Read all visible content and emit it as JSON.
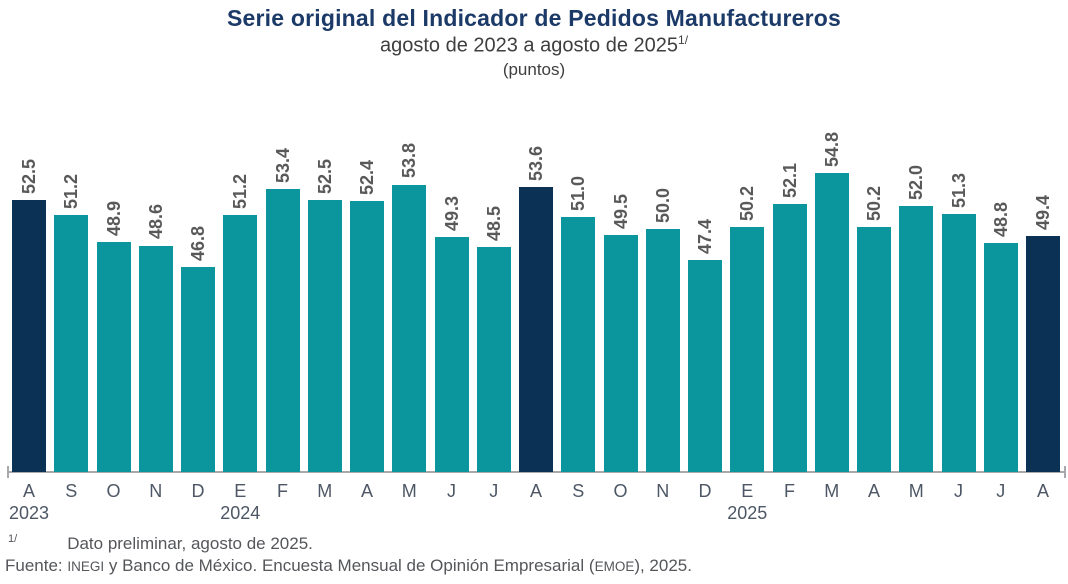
{
  "header": {
    "title": "Serie original del Indicador de Pedidos Manufactureros",
    "subtitle": "agosto de 2023 a agosto de 2025",
    "subtitle_superscript": "1/",
    "units": "(puntos)"
  },
  "chart_data": {
    "type": "bar",
    "title": "Serie original del Indicador de Pedidos Manufactureros",
    "subtitle": "agosto de 2023 a agosto de 2025 (1/), (puntos)",
    "categories": [
      "A",
      "S",
      "O",
      "N",
      "D",
      "E",
      "F",
      "M",
      "A",
      "M",
      "J",
      "J",
      "A",
      "S",
      "O",
      "N",
      "D",
      "E",
      "F",
      "M",
      "A",
      "M",
      "J",
      "J",
      "A"
    ],
    "values": [
      52.5,
      51.2,
      48.9,
      48.6,
      46.8,
      51.2,
      53.4,
      52.5,
      52.4,
      53.8,
      49.3,
      48.5,
      53.6,
      51.0,
      49.5,
      50.0,
      47.4,
      50.2,
      52.1,
      54.8,
      50.2,
      52.0,
      51.3,
      48.8,
      49.4
    ],
    "value_label_decimals": 1,
    "highlight_indices": [
      0,
      12,
      24
    ],
    "year_labels": [
      {
        "index": 0,
        "label": "2023"
      },
      {
        "index": 5,
        "label": "2024"
      },
      {
        "index": 17,
        "label": "2025"
      }
    ],
    "colors": {
      "bar": "#0B959D",
      "highlight": "#0B3154",
      "value_label": "#595959",
      "tick_label": "#4D5765",
      "axis_line": "#A7A9AC",
      "title": "#1C3A68"
    },
    "ylim": [
      29.3,
      61
    ],
    "grid": false,
    "legend": false,
    "xlabel": "",
    "ylabel": ""
  },
  "footnotes": {
    "note1_marker": "1/",
    "note1_text": "Dato preliminar, agosto de 2025.",
    "source_prefix": "Fuente: ",
    "source_inegi": "INEGI",
    "source_middle": " y Banco de México. Encuesta Mensual de Opinión Empresarial (",
    "source_emoe": "EMOE",
    "source_suffix": "), 2025."
  }
}
